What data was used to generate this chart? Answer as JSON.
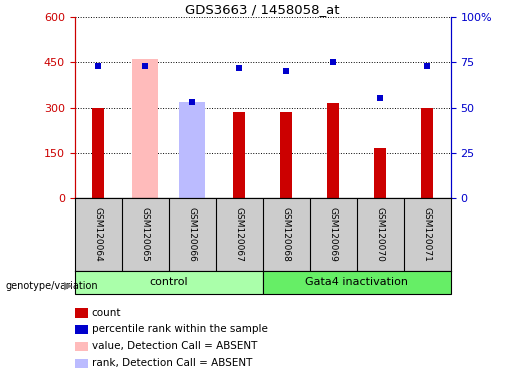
{
  "title": "GDS3663 / 1458058_at",
  "samples": [
    "GSM120064",
    "GSM120065",
    "GSM120066",
    "GSM120067",
    "GSM120068",
    "GSM120069",
    "GSM120070",
    "GSM120071"
  ],
  "count_values": [
    300,
    null,
    null,
    285,
    285,
    315,
    165,
    300
  ],
  "absent_value_bars": [
    null,
    460,
    315,
    null,
    null,
    null,
    null,
    null
  ],
  "percentile_ranks": [
    73,
    73,
    53,
    72,
    70,
    75,
    55,
    73
  ],
  "absent_rank_bars": [
    null,
    null,
    53,
    null,
    null,
    null,
    null,
    null
  ],
  "ylim_left": [
    0,
    600
  ],
  "ylim_right": [
    0,
    100
  ],
  "yticks_left": [
    0,
    150,
    300,
    450,
    600
  ],
  "yticks_right": [
    0,
    25,
    50,
    75,
    100
  ],
  "ytick_labels_right": [
    "0",
    "25",
    "50",
    "75",
    "100%"
  ],
  "color_red": "#cc0000",
  "color_blue": "#0000cc",
  "color_pink_bar": "#ffbbbb",
  "color_blue_light": "#bbbbff",
  "color_control_bg": "#aaffaa",
  "color_gata4_bg": "#66ee66",
  "color_sample_bg": "#cccccc",
  "legend_items": [
    "count",
    "percentile rank within the sample",
    "value, Detection Call = ABSENT",
    "rank, Detection Call = ABSENT"
  ],
  "legend_colors": [
    "#cc0000",
    "#0000cc",
    "#ffbbbb",
    "#bbbbff"
  ]
}
